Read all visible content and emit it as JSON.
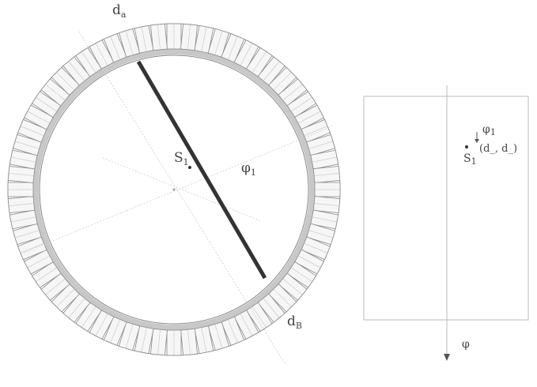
{
  "labels": {
    "detector_a": {
      "base": "d",
      "sub": "a"
    },
    "detector_b": {
      "base": "d",
      "sub": "B"
    },
    "source": {
      "base": "S",
      "sub": "1"
    },
    "angle": {
      "base": "φ",
      "sub": "1"
    },
    "sino_angle": {
      "base": "φ",
      "sub": "1"
    },
    "sino_point": {
      "base": "S",
      "sub": "1"
    },
    "sino_coords": "(d_, d_)",
    "sino_axis": "φ"
  }
}
